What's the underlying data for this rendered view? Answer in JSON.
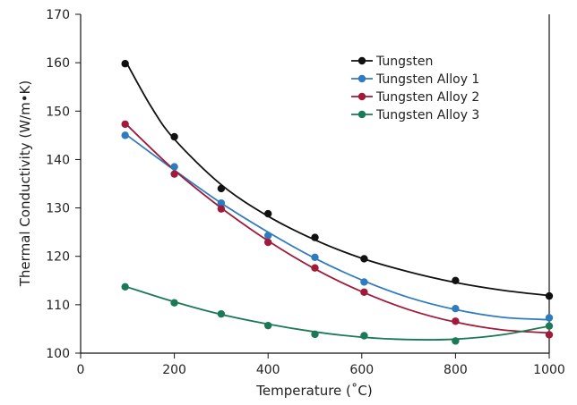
{
  "chart_data": {
    "type": "scatter",
    "title": "",
    "xlabel": "Temperature (˚C)",
    "ylabel": "Thermal Conductivity (W/m•K)",
    "xlim": [
      0,
      1000
    ],
    "ylim": [
      100,
      170
    ],
    "xticks": [
      0,
      200,
      400,
      600,
      800,
      1000
    ],
    "yticks": [
      100,
      110,
      120,
      130,
      140,
      150,
      160,
      170
    ],
    "grid": false,
    "legend_position": "top-right",
    "trendline": "smooth fit",
    "series": [
      {
        "name": "Tungsten",
        "color": "#111111",
        "points": [
          [
            95,
            159.8
          ],
          [
            200,
            144.7
          ],
          [
            300,
            134.0
          ],
          [
            400,
            128.8
          ],
          [
            500,
            123.9
          ],
          [
            605,
            119.5
          ],
          [
            800,
            115.0
          ],
          [
            1000,
            111.8
          ]
        ],
        "fit": [
          [
            95,
            160.5
          ],
          [
            150,
            151
          ],
          [
            200,
            144.2
          ],
          [
            300,
            134.8
          ],
          [
            400,
            128.3
          ],
          [
            500,
            123.4
          ],
          [
            600,
            119.6
          ],
          [
            700,
            116.8
          ],
          [
            800,
            114.6
          ],
          [
            900,
            113.0
          ],
          [
            1000,
            111.9
          ]
        ]
      },
      {
        "name": "Tungsten Alloy 1",
        "color": "#2f7bbf",
        "points": [
          [
            95,
            145.0
          ],
          [
            200,
            138.5
          ],
          [
            300,
            131.0
          ],
          [
            400,
            124.3
          ],
          [
            500,
            119.8
          ],
          [
            605,
            114.7
          ],
          [
            800,
            109.2
          ],
          [
            1000,
            107.3
          ]
        ],
        "fit": [
          [
            95,
            145.3
          ],
          [
            200,
            137.8
          ],
          [
            300,
            131.0
          ],
          [
            400,
            125.0
          ],
          [
            500,
            119.6
          ],
          [
            600,
            115.1
          ],
          [
            700,
            111.5
          ],
          [
            800,
            109.0
          ],
          [
            900,
            107.4
          ],
          [
            1000,
            106.9
          ]
        ]
      },
      {
        "name": "Tungsten Alloy 2",
        "color": "#a01a3a",
        "points": [
          [
            95,
            147.3
          ],
          [
            200,
            137.0
          ],
          [
            300,
            129.8
          ],
          [
            400,
            122.9
          ],
          [
            500,
            117.6
          ],
          [
            605,
            112.6
          ],
          [
            800,
            106.6
          ],
          [
            1000,
            103.8
          ]
        ],
        "fit": [
          [
            95,
            147.5
          ],
          [
            200,
            137.8
          ],
          [
            300,
            130.0
          ],
          [
            400,
            123.2
          ],
          [
            500,
            117.4
          ],
          [
            600,
            112.7
          ],
          [
            700,
            109.0
          ],
          [
            800,
            106.4
          ],
          [
            900,
            104.8
          ],
          [
            1000,
            104.2
          ]
        ]
      },
      {
        "name": "Tungsten Alloy 3",
        "color": "#1a7a55",
        "points": [
          [
            95,
            113.7
          ],
          [
            200,
            110.4
          ],
          [
            300,
            108.1
          ],
          [
            400,
            105.7
          ],
          [
            500,
            103.9
          ],
          [
            605,
            103.6
          ],
          [
            800,
            102.5
          ],
          [
            1000,
            105.6
          ]
        ],
        "fit": [
          [
            95,
            113.8
          ],
          [
            200,
            110.6
          ],
          [
            300,
            108.0
          ],
          [
            400,
            106.0
          ],
          [
            500,
            104.4
          ],
          [
            600,
            103.3
          ],
          [
            700,
            102.8
          ],
          [
            800,
            102.9
          ],
          [
            900,
            103.8
          ],
          [
            1000,
            105.6
          ]
        ]
      }
    ]
  }
}
